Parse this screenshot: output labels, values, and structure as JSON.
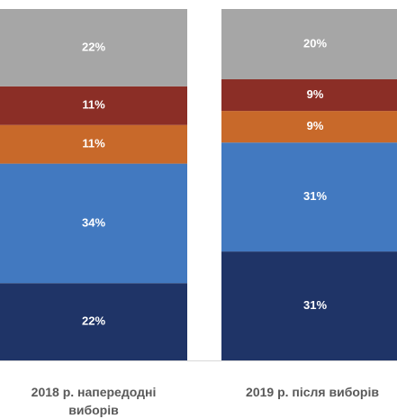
{
  "chart_data": {
    "type": "stacked-bar",
    "categories": [
      "2018 р. напередодні виборів",
      "2019 р. після виборів"
    ],
    "series": [
      {
        "color": "#1f3467",
        "values": [
          22,
          31
        ],
        "value_labels": [
          "22%",
          "31%"
        ]
      },
      {
        "color": "#4279c0",
        "values": [
          34,
          31
        ],
        "value_labels": [
          "34%",
          "31%"
        ]
      },
      {
        "color": "#c8692a",
        "values": [
          11,
          9
        ],
        "value_labels": [
          "11%",
          "9%"
        ]
      },
      {
        "color": "#8b2e26",
        "values": [
          11,
          9
        ],
        "value_labels": [
          "11%",
          "9%"
        ]
      },
      {
        "color": "#a6a6a6",
        "values": [
          22,
          20
        ],
        "value_labels": [
          "22%",
          "20%"
        ]
      }
    ]
  }
}
